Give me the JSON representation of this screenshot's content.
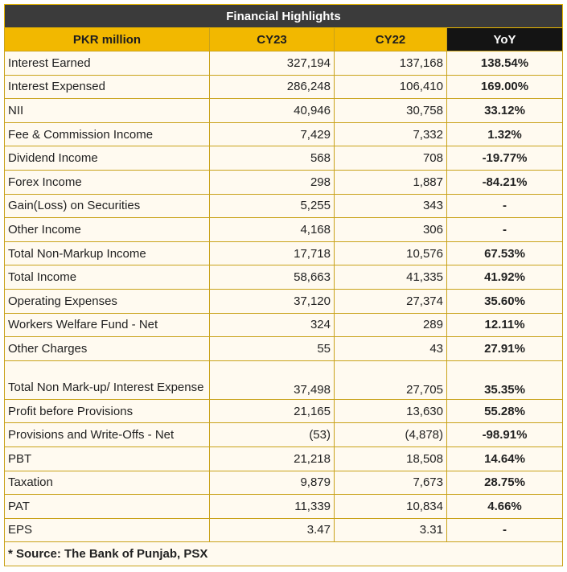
{
  "title": "Financial Highlights",
  "headers": [
    "PKR million",
    "CY23",
    "CY22",
    "YoY"
  ],
  "rows": [
    {
      "label": "Interest Earned",
      "cy23": "327,194",
      "cy22": "137,168",
      "yoy": "138.54%"
    },
    {
      "label": "Interest Expensed",
      "cy23": "286,248",
      "cy22": "106,410",
      "yoy": "169.00%"
    },
    {
      "label": "NII",
      "cy23": "40,946",
      "cy22": "30,758",
      "yoy": "33.12%"
    },
    {
      "label": "Fee & Commission Income",
      "cy23": "7,429",
      "cy22": "7,332",
      "yoy": "1.32%"
    },
    {
      "label": "Dividend Income",
      "cy23": "568",
      "cy22": "708",
      "yoy": "-19.77%"
    },
    {
      "label": "Forex Income",
      "cy23": "298",
      "cy22": "1,887",
      "yoy": "-84.21%"
    },
    {
      "label": "Gain(Loss) on Securities",
      "cy23": "5,255",
      "cy22": "343",
      "yoy": "-"
    },
    {
      "label": "Other Income",
      "cy23": "4,168",
      "cy22": "306",
      "yoy": "-"
    },
    {
      "label": "Total Non-Markup Income",
      "cy23": "17,718",
      "cy22": "10,576",
      "yoy": "67.53%"
    },
    {
      "label": "Total Income",
      "cy23": "58,663",
      "cy22": "41,335",
      "yoy": "41.92%"
    },
    {
      "label": "Operating Expenses",
      "cy23": "37,120",
      "cy22": "27,374",
      "yoy": "35.60%"
    },
    {
      "label": "Workers Welfare Fund - Net",
      "cy23": "324",
      "cy22": "289",
      "yoy": "12.11%"
    },
    {
      "label": "Other Charges",
      "cy23": "55",
      "cy22": "43",
      "yoy": "27.91%"
    },
    {
      "label": "Total Non Mark-up/ Interest Expense",
      "cy23": "37,498",
      "cy22": "27,705",
      "yoy": "35.35%"
    },
    {
      "label": "Profit before Provisions",
      "cy23": "21,165",
      "cy22": "13,630",
      "yoy": "55.28%"
    },
    {
      "label": "Provisions and Write-Offs - Net",
      "cy23": "(53)",
      "cy22": "(4,878)",
      "yoy": "-98.91%"
    },
    {
      "label": "PBT",
      "cy23": "21,218",
      "cy22": "18,508",
      "yoy": "14.64%"
    },
    {
      "label": "Taxation",
      "cy23": "9,879",
      "cy22": "7,673",
      "yoy": "28.75%"
    },
    {
      "label": "PAT",
      "cy23": "11,339",
      "cy22": "10,834",
      "yoy": "4.66%"
    },
    {
      "label": "EPS",
      "cy23": "3.47",
      "cy22": "3.31",
      "yoy": "-"
    }
  ],
  "source": "* Source: The Bank of Punjab, PSX"
}
